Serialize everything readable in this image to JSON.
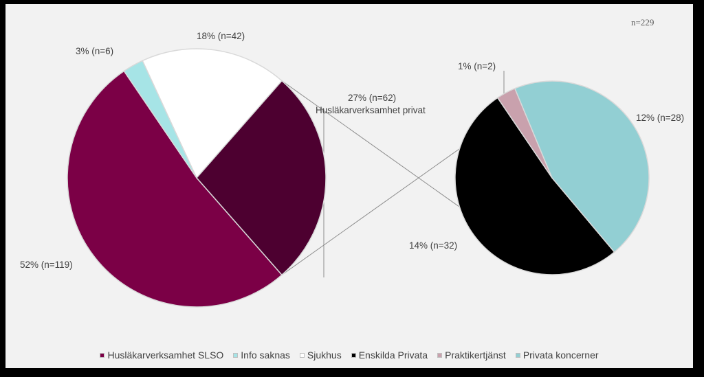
{
  "chart_data": {
    "type": "pie",
    "variant": "pie-of-pie",
    "sample_label": "n=229",
    "primary": {
      "slices": [
        {
          "name": "Husläkarverksamhet SLSO",
          "label": "52% (n=119)",
          "value": 119,
          "color": "#7b0046"
        },
        {
          "name": "Info saknas",
          "label": "3% (n=6)",
          "value": 6,
          "color": "#a6e4e6"
        },
        {
          "name": "Sjukhus",
          "label": "18% (n=42)",
          "value": 42,
          "color": "#ffffff"
        },
        {
          "name": "Husläkarverksamhet privat",
          "label": "27% (n=62)",
          "value": 62,
          "color": "#4d0030"
        }
      ],
      "grouped_label_line2": "Husläkarverksamhet privat"
    },
    "secondary": {
      "slices": [
        {
          "name": "Enskilda Privata",
          "label": "14% (n=32)",
          "value": 32,
          "color": "#000000"
        },
        {
          "name": "Praktikertjänst",
          "label": "1% (n=2)",
          "value": 2,
          "color": "#c9a1ad"
        },
        {
          "name": "Privata koncerner",
          "label": "12% (n=28)",
          "value": 28,
          "color": "#92cfd3"
        }
      ]
    },
    "legend": {
      "position": "bottom",
      "items": [
        {
          "label": "Husläkarverksamhet SLSO",
          "color": "#7b0046"
        },
        {
          "label": "Info saknas",
          "color": "#a6e4e6"
        },
        {
          "label": "Sjukhus",
          "color": "#ffffff"
        },
        {
          "label": "Enskilda Privata",
          "color": "#000000"
        },
        {
          "label": "Praktikertjänst",
          "color": "#c9a1ad"
        },
        {
          "label": "Privata koncerner",
          "color": "#92cfd3"
        }
      ]
    }
  }
}
